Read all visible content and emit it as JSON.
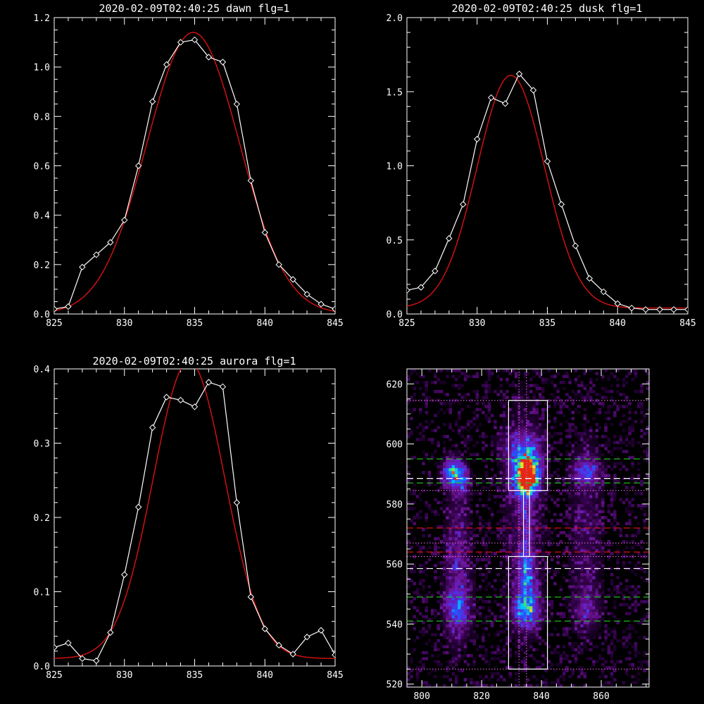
{
  "figure": {
    "background": "#000000",
    "axis_color": "#ffffff",
    "fit_color": "#dd1111",
    "obs_color": "#ffffff"
  },
  "chart_data": [
    {
      "id": "dawn",
      "type": "line",
      "title": "2020-02-09T02:40:25 dawn flg=1",
      "xlim": [
        825,
        845
      ],
      "ylim": [
        0,
        1.2
      ],
      "xticks": [
        825,
        830,
        835,
        840,
        845
      ],
      "yticks": [
        0.0,
        0.2,
        0.4,
        0.6,
        0.8,
        1.0,
        1.2
      ],
      "ytick_labels": [
        "0.0",
        "0.2",
        "0.4",
        "0.6",
        "0.8",
        "1.0",
        "1.2"
      ],
      "series": [
        {
          "role": "observed",
          "x": [
            825,
            826,
            827,
            828,
            829,
            830,
            831,
            832,
            833,
            834,
            835,
            836,
            837,
            838,
            839,
            840,
            841,
            842,
            843,
            844,
            845
          ],
          "y": [
            0.02,
            0.03,
            0.19,
            0.24,
            0.29,
            0.38,
            0.6,
            0.86,
            1.01,
            1.1,
            1.11,
            1.04,
            1.02,
            0.85,
            0.54,
            0.33,
            0.2,
            0.14,
            0.08,
            0.04,
            0.02
          ]
        },
        {
          "role": "fit",
          "peak": 1.14,
          "center": 834.9,
          "sigma": 3.3,
          "base": 0.0
        }
      ]
    },
    {
      "id": "dusk",
      "type": "line",
      "title": "2020-02-09T02:40:25 dusk flg=1",
      "xlim": [
        825,
        845
      ],
      "ylim": [
        0,
        2.0
      ],
      "xticks": [
        825,
        830,
        835,
        840,
        845
      ],
      "yticks": [
        0.0,
        0.5,
        1.0,
        1.5,
        2.0
      ],
      "ytick_labels": [
        "0.0",
        "0.5",
        "1.0",
        "1.5",
        "2.0"
      ],
      "series": [
        {
          "role": "observed",
          "x": [
            825,
            826,
            827,
            828,
            829,
            830,
            831,
            832,
            833,
            834,
            835,
            836,
            837,
            838,
            839,
            840,
            841,
            842,
            843,
            844,
            845
          ],
          "y": [
            0.16,
            0.18,
            0.29,
            0.51,
            0.74,
            1.18,
            1.46,
            1.42,
            1.62,
            1.51,
            1.03,
            0.74,
            0.46,
            0.24,
            0.15,
            0.07,
            0.04,
            0.03,
            0.03,
            0.03,
            0.03
          ]
        },
        {
          "role": "fit",
          "peak": 1.57,
          "center": 832.4,
          "sigma": 2.4,
          "base": 0.04
        }
      ]
    },
    {
      "id": "aurora",
      "type": "line",
      "title": "2020-02-09T02:40:25 aurora flg=1",
      "xlim": [
        825,
        845
      ],
      "ylim": [
        0,
        0.4
      ],
      "xticks": [
        825,
        830,
        835,
        840,
        845
      ],
      "yticks": [
        0.0,
        0.1,
        0.2,
        0.3,
        0.4
      ],
      "ytick_labels": [
        "0.0",
        "0.1",
        "0.2",
        "0.3",
        "0.4"
      ],
      "series": [
        {
          "role": "observed",
          "x": [
            825,
            826,
            827,
            828,
            829,
            830,
            831,
            832,
            833,
            834,
            835,
            836,
            837,
            838,
            839,
            840,
            841,
            842,
            843,
            844,
            845
          ],
          "y": [
            0.025,
            0.031,
            0.01,
            0.007,
            0.045,
            0.123,
            0.214,
            0.321,
            0.362,
            0.358,
            0.349,
            0.382,
            0.376,
            0.22,
            0.093,
            0.05,
            0.028,
            0.016,
            0.039,
            0.048,
            0.015
          ]
        },
        {
          "role": "fit",
          "peak": 0.4,
          "center": 834.6,
          "sigma": 2.55,
          "base": 0.01
        }
      ]
    },
    {
      "id": "image",
      "type": "heatmap",
      "title": "",
      "xlim": [
        795,
        876
      ],
      "ylim": [
        519,
        625
      ],
      "xticks": [
        800,
        820,
        840,
        860
      ],
      "yticks": [
        520,
        540,
        560,
        580,
        600,
        620
      ],
      "blobs": [
        {
          "x": 835,
          "y": 589,
          "amp": 1.0,
          "sx": 2.2,
          "sy": 3.5
        },
        {
          "x": 835,
          "y": 592,
          "amp": 0.55,
          "sx": 3.5,
          "sy": 5
        },
        {
          "x": 835,
          "y": 545,
          "amp": 0.55,
          "sx": 3,
          "sy": 4
        },
        {
          "x": 835,
          "y": 556,
          "amp": 0.35,
          "sx": 2,
          "sy": 6
        },
        {
          "x": 835,
          "y": 575,
          "amp": 0.18,
          "sx": 1.5,
          "sy": 12
        },
        {
          "x": 834,
          "y": 575,
          "amp": 0.15,
          "sx": 5,
          "sy": 30
        },
        {
          "x": 810,
          "y": 591,
          "amp": 0.55,
          "sx": 2.2,
          "sy": 3
        },
        {
          "x": 813,
          "y": 588,
          "amp": 0.4,
          "sx": 2,
          "sy": 3
        },
        {
          "x": 812,
          "y": 560,
          "amp": 0.25,
          "sx": 3,
          "sy": 18
        },
        {
          "x": 812,
          "y": 545,
          "amp": 0.3,
          "sx": 3,
          "sy": 5
        },
        {
          "x": 855,
          "y": 591,
          "amp": 0.35,
          "sx": 3,
          "sy": 3
        },
        {
          "x": 855,
          "y": 570,
          "amp": 0.15,
          "sx": 4,
          "sy": 25
        },
        {
          "x": 855,
          "y": 545,
          "amp": 0.2,
          "sx": 3,
          "sy": 4
        },
        {
          "x": 833,
          "y": 600,
          "amp": 0.2,
          "sx": 5,
          "sy": 4
        }
      ],
      "boxes": [
        {
          "x0": 829,
          "x1": 842,
          "y0": 584.5,
          "y1": 614.5
        },
        {
          "x0": 829,
          "x1": 842,
          "y0": 525,
          "y1": 562.5
        },
        {
          "x0": 834,
          "x1": 836,
          "y0": 562.5,
          "y1": 584.5
        }
      ],
      "hlines": [
        {
          "y": 614.5,
          "color": "#cc66cc",
          "style": "dotted"
        },
        {
          "y": 595,
          "color": "#22cc22",
          "style": "dashed"
        },
        {
          "y": 588.5,
          "color": "#ffffff",
          "style": "dashed"
        },
        {
          "y": 587,
          "color": "#22cc22",
          "style": "dashed"
        },
        {
          "y": 584.5,
          "color": "#cc66cc",
          "style": "dotted"
        },
        {
          "y": 572,
          "color": "#dd1111",
          "style": "dashed"
        },
        {
          "y": 567,
          "color": "#cc66cc",
          "style": "dotted"
        },
        {
          "y": 564,
          "color": "#dd1111",
          "style": "dashed"
        },
        {
          "y": 562.5,
          "color": "#cc66cc",
          "style": "dotted"
        },
        {
          "y": 558.5,
          "color": "#ffffff",
          "style": "dashed"
        },
        {
          "y": 549,
          "color": "#22cc22",
          "style": "dashed"
        },
        {
          "y": 541,
          "color": "#22cc22",
          "style": "dashed"
        },
        {
          "y": 525,
          "color": "#cc66cc",
          "style": "dotted"
        }
      ],
      "vlines": [
        {
          "x": 832.5,
          "color": "#cc66cc",
          "style": "dotted"
        },
        {
          "x": 835,
          "color": "#cc66cc",
          "style": "dotted"
        }
      ]
    }
  ]
}
